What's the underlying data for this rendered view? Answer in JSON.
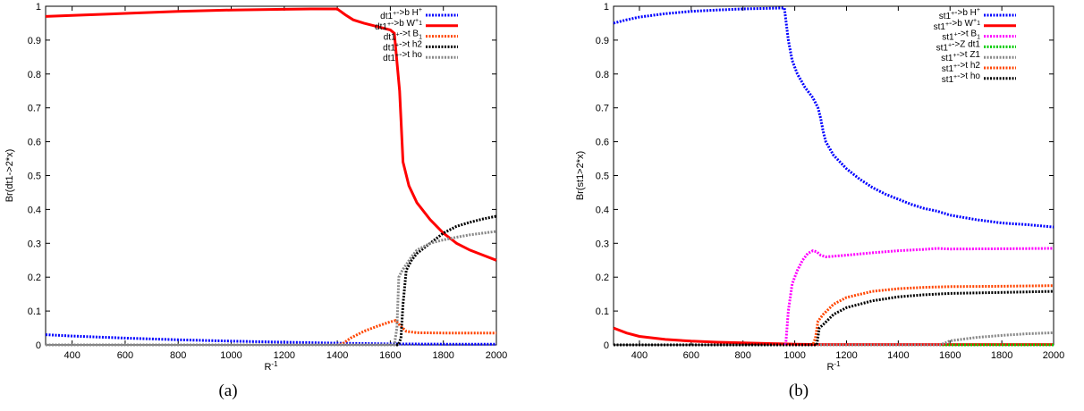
{
  "chart_data": [
    {
      "type": "line",
      "caption": "(a)",
      "xlabel": "R",
      "xlabel_sup": "-1",
      "ylabel": "Br(dt1->2*x)",
      "xlim": [
        300,
        2000
      ],
      "ylim": [
        0,
        1
      ],
      "xticks": [
        400,
        600,
        800,
        1000,
        1200,
        1400,
        1600,
        1800,
        2000
      ],
      "yticks": [
        0,
        0.1,
        0.2,
        0.3,
        0.4,
        0.5,
        0.6,
        0.7,
        0.8,
        0.9,
        1
      ],
      "legend_position": "top-right",
      "series": [
        {
          "key": "H",
          "base": "dt1",
          "sup": "+",
          "mid": "->b H",
          "end_sup": "+",
          "color": "#0000ff",
          "style": "dotted",
          "width": 3,
          "points": [
            [
              300,
              0.03
            ],
            [
              400,
              0.026
            ],
            [
              600,
              0.02
            ],
            [
              800,
              0.015
            ],
            [
              1000,
              0.011
            ],
            [
              1200,
              0.008
            ],
            [
              1400,
              0.005
            ],
            [
              1600,
              0.003
            ],
            [
              1800,
              0.002
            ],
            [
              2000,
              0.002
            ]
          ]
        },
        {
          "key": "W",
          "base": "dt1",
          "sup": "+",
          "mid": "->b W",
          "mid_sup": "+",
          "mid_sub": "1",
          "color": "#ff0000",
          "style": "solid",
          "width": 3,
          "points": [
            [
              300,
              0.97
            ],
            [
              400,
              0.973
            ],
            [
              600,
              0.979
            ],
            [
              800,
              0.985
            ],
            [
              1000,
              0.989
            ],
            [
              1200,
              0.991
            ],
            [
              1300,
              0.992
            ],
            [
              1400,
              0.992
            ],
            [
              1430,
              0.975
            ],
            [
              1460,
              0.96
            ],
            [
              1500,
              0.95
            ],
            [
              1550,
              0.94
            ],
            [
              1600,
              0.93
            ],
            [
              1615,
              0.92
            ],
            [
              1635,
              0.75
            ],
            [
              1648,
              0.54
            ],
            [
              1670,
              0.47
            ],
            [
              1700,
              0.42
            ],
            [
              1750,
              0.37
            ],
            [
              1800,
              0.33
            ],
            [
              1850,
              0.3
            ],
            [
              1900,
              0.28
            ],
            [
              1950,
              0.265
            ],
            [
              2000,
              0.25
            ]
          ]
        },
        {
          "key": "B",
          "base": "dt1",
          "sup": "+",
          "mid": "->t B",
          "mid_sub": "1",
          "color": "#ff4500",
          "style": "dotted",
          "width": 3,
          "points": [
            [
              300,
              0
            ],
            [
              1400,
              0
            ],
            [
              1420,
              0.003
            ],
            [
              1450,
              0.02
            ],
            [
              1500,
              0.04
            ],
            [
              1550,
              0.055
            ],
            [
              1600,
              0.068
            ],
            [
              1620,
              0.072
            ],
            [
              1640,
              0.055
            ],
            [
              1660,
              0.04
            ],
            [
              1700,
              0.036
            ],
            [
              1800,
              0.035
            ],
            [
              2000,
              0.035
            ]
          ]
        },
        {
          "key": "h2",
          "base": "dt1",
          "sup": "+",
          "mid": "->t h2",
          "color": "#000000",
          "style": "dotted",
          "width": 3,
          "points": [
            [
              300,
              0
            ],
            [
              1630,
              0
            ],
            [
              1640,
              0.02
            ],
            [
              1648,
              0.12
            ],
            [
              1660,
              0.22
            ],
            [
              1680,
              0.25
            ],
            [
              1700,
              0.27
            ],
            [
              1750,
              0.3
            ],
            [
              1800,
              0.33
            ],
            [
              1850,
              0.35
            ],
            [
              1900,
              0.362
            ],
            [
              1950,
              0.372
            ],
            [
              2000,
              0.38
            ]
          ]
        },
        {
          "key": "ho",
          "base": "dt1",
          "sup": "+",
          "mid": "->t ho",
          "color": "#888888",
          "style": "dotted",
          "width": 3,
          "points": [
            [
              300,
              0
            ],
            [
              1615,
              0
            ],
            [
              1625,
              0.05
            ],
            [
              1632,
              0.2
            ],
            [
              1645,
              0.22
            ],
            [
              1680,
              0.26
            ],
            [
              1700,
              0.28
            ],
            [
              1750,
              0.3
            ],
            [
              1800,
              0.31
            ],
            [
              1850,
              0.318
            ],
            [
              1900,
              0.325
            ],
            [
              1950,
              0.33
            ],
            [
              2000,
              0.335
            ]
          ]
        }
      ]
    },
    {
      "type": "line",
      "caption": "(b)",
      "xlabel": "R",
      "xlabel_sup": "-1",
      "ylabel": "Br(st1>2*x)",
      "xlim": [
        300,
        2000
      ],
      "ylim": [
        0,
        1
      ],
      "xticks": [
        400,
        600,
        800,
        1000,
        1200,
        1400,
        1600,
        1800,
        2000
      ],
      "yticks": [
        0,
        0.1,
        0.2,
        0.3,
        0.4,
        0.5,
        0.6,
        0.7,
        0.8,
        0.9,
        1
      ],
      "legend_position": "top-right",
      "series": [
        {
          "key": "H",
          "base": "st1",
          "sup": "+",
          "mid": "->b H",
          "end_sup": "+",
          "color": "#0000ff",
          "style": "dotted",
          "width": 3,
          "points": [
            [
              300,
              0.95
            ],
            [
              350,
              0.96
            ],
            [
              400,
              0.968
            ],
            [
              500,
              0.978
            ],
            [
              600,
              0.985
            ],
            [
              700,
              0.989
            ],
            [
              800,
              0.992
            ],
            [
              900,
              0.994
            ],
            [
              960,
              0.995
            ],
            [
              975,
              0.9
            ],
            [
              990,
              0.84
            ],
            [
              1010,
              0.8
            ],
            [
              1040,
              0.76
            ],
            [
              1070,
              0.73
            ],
            [
              1090,
              0.7
            ],
            [
              1100,
              0.67
            ],
            [
              1110,
              0.63
            ],
            [
              1120,
              0.6
            ],
            [
              1150,
              0.56
            ],
            [
              1200,
              0.52
            ],
            [
              1250,
              0.49
            ],
            [
              1300,
              0.465
            ],
            [
              1350,
              0.445
            ],
            [
              1400,
              0.43
            ],
            [
              1450,
              0.415
            ],
            [
              1500,
              0.403
            ],
            [
              1550,
              0.395
            ],
            [
              1600,
              0.383
            ],
            [
              1700,
              0.37
            ],
            [
              1800,
              0.36
            ],
            [
              1900,
              0.355
            ],
            [
              2000,
              0.348
            ]
          ]
        },
        {
          "key": "W",
          "base": "st1",
          "sup": "+",
          "mid": "->b W",
          "mid_sup": "+",
          "mid_sub": "1",
          "color": "#ff0000",
          "style": "solid",
          "width": 3,
          "points": [
            [
              300,
              0.05
            ],
            [
              350,
              0.035
            ],
            [
              400,
              0.025
            ],
            [
              500,
              0.016
            ],
            [
              600,
              0.011
            ],
            [
              700,
              0.008
            ],
            [
              800,
              0.006
            ],
            [
              900,
              0.004
            ],
            [
              960,
              0.003
            ],
            [
              1000,
              0.002
            ],
            [
              1100,
              0.001
            ],
            [
              1200,
              0.001
            ],
            [
              1400,
              0.001
            ],
            [
              2000,
              0.001
            ]
          ]
        },
        {
          "key": "B",
          "base": "st1",
          "sup": "+",
          "mid": "->t B",
          "mid_sub": "1",
          "color": "#ff00ff",
          "style": "dotted",
          "width": 3,
          "points": [
            [
              300,
              0
            ],
            [
              965,
              0
            ],
            [
              975,
              0.1
            ],
            [
              990,
              0.18
            ],
            [
              1010,
              0.22
            ],
            [
              1030,
              0.25
            ],
            [
              1050,
              0.27
            ],
            [
              1070,
              0.278
            ],
            [
              1085,
              0.275
            ],
            [
              1100,
              0.265
            ],
            [
              1120,
              0.26
            ],
            [
              1200,
              0.265
            ],
            [
              1300,
              0.272
            ],
            [
              1400,
              0.278
            ],
            [
              1500,
              0.282
            ],
            [
              1550,
              0.285
            ],
            [
              1600,
              0.283
            ],
            [
              1800,
              0.284
            ],
            [
              2000,
              0.285
            ]
          ]
        },
        {
          "key": "Z",
          "base": "st1",
          "sup": "+",
          "mid": "->Z dt1",
          "color": "#00cc00",
          "style": "dotted",
          "width": 3,
          "points": [
            [
              300,
              0
            ],
            [
              2000,
              0
            ]
          ]
        },
        {
          "key": "Z1",
          "base": "st1",
          "sup": "+",
          "mid": "->t Z1",
          "color": "#888888",
          "style": "dotted",
          "width": 3,
          "points": [
            [
              300,
              0
            ],
            [
              1560,
              0
            ],
            [
              1580,
              0.005
            ],
            [
              1600,
              0.012
            ],
            [
              1700,
              0.022
            ],
            [
              1800,
              0.028
            ],
            [
              1900,
              0.033
            ],
            [
              2000,
              0.036
            ]
          ]
        },
        {
          "key": "h2",
          "base": "st1",
          "sup": "+",
          "mid": "->t h2",
          "color": "#ff4500",
          "style": "dotted",
          "width": 3,
          "points": [
            [
              300,
              0
            ],
            [
              1070,
              0
            ],
            [
              1080,
              0.02
            ],
            [
              1090,
              0.07
            ],
            [
              1110,
              0.09
            ],
            [
              1150,
              0.12
            ],
            [
              1200,
              0.14
            ],
            [
              1300,
              0.158
            ],
            [
              1400,
              0.166
            ],
            [
              1500,
              0.17
            ],
            [
              1600,
              0.172
            ],
            [
              1800,
              0.173
            ],
            [
              2000,
              0.175
            ]
          ]
        },
        {
          "key": "ho",
          "base": "st1",
          "sup": "+",
          "mid": "->t ho",
          "color": "#000000",
          "style": "dotted",
          "width": 3,
          "points": [
            [
              300,
              0
            ],
            [
              1085,
              0
            ],
            [
              1095,
              0.05
            ],
            [
              1110,
              0.06
            ],
            [
              1150,
              0.09
            ],
            [
              1200,
              0.11
            ],
            [
              1300,
              0.13
            ],
            [
              1400,
              0.142
            ],
            [
              1500,
              0.148
            ],
            [
              1600,
              0.152
            ],
            [
              1800,
              0.155
            ],
            [
              2000,
              0.158
            ]
          ]
        }
      ]
    }
  ]
}
